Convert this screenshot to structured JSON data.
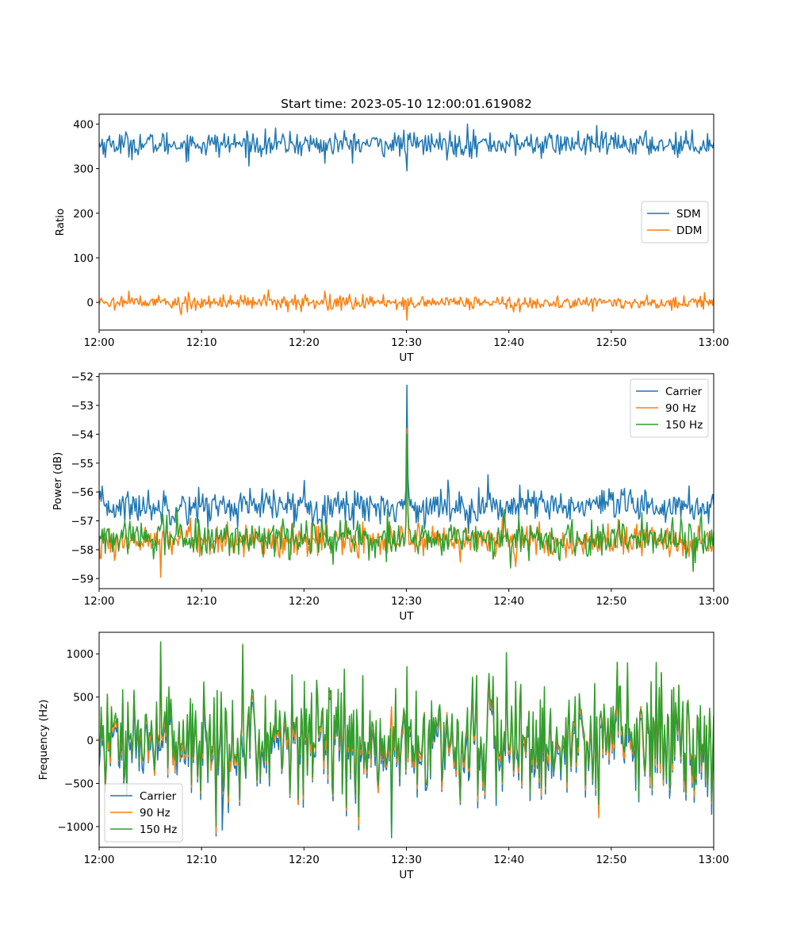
{
  "figure": {
    "title": "Start time: 2023-05-10 12:00:01.619082"
  },
  "chart_data": [
    {
      "type": "line",
      "id": "ratio",
      "ylabel": "Ratio",
      "xlabel": "UT",
      "xlim": [
        "12:00",
        "13:00"
      ],
      "xticks": [
        "12:00",
        "12:10",
        "12:20",
        "12:30",
        "12:40",
        "12:50",
        "13:00"
      ],
      "ylim": [
        -62,
        422
      ],
      "yticks": [
        0,
        100,
        200,
        300,
        400
      ],
      "yticklabels": [
        "0",
        "100",
        "200",
        "300",
        "400"
      ],
      "legend_position": "center-right",
      "samples": 600,
      "series": [
        {
          "name": "SDM",
          "color": "#1f77b4",
          "mean": 355,
          "noise": 14,
          "spikes": [
            {
              "t": "12:30",
              "value": 295
            },
            {
              "t": "12:36",
              "value": 400
            },
            {
              "t": "12:22",
              "value": 312
            }
          ]
        },
        {
          "name": "DDM",
          "color": "#ff7f0e",
          "mean": 0,
          "noise": 8,
          "spikes": [
            {
              "t": "12:30",
              "value": -40
            },
            {
              "t": "12:22",
              "value": 25
            },
            {
              "t": "12:08",
              "value": -28
            }
          ]
        }
      ]
    },
    {
      "type": "line",
      "id": "power",
      "ylabel": "Power (dB)",
      "xlabel": "UT",
      "xlim": [
        "12:00",
        "13:00"
      ],
      "xticks": [
        "12:00",
        "12:10",
        "12:20",
        "12:30",
        "12:40",
        "12:50",
        "13:00"
      ],
      "ylim": [
        -59.35,
        -51.9
      ],
      "yticks": [
        -59,
        -58,
        -57,
        -56,
        -55,
        -54,
        -53,
        -52
      ],
      "yticklabels": [
        "−59",
        "−58",
        "−57",
        "−56",
        "−55",
        "−54",
        "−53",
        "−52"
      ],
      "legend_position": "upper-right",
      "samples": 600,
      "series": [
        {
          "name": "Carrier",
          "color": "#1f77b4",
          "mean": -56.5,
          "noise": 0.3,
          "spikes": [
            {
              "t": "12:30",
              "value": -52.3
            },
            {
              "t": "12:38",
              "value": -55.4
            },
            {
              "t": "12:20",
              "value": -55.6
            }
          ]
        },
        {
          "name": "90 Hz",
          "color": "#ff7f0e",
          "mean": -57.7,
          "noise": 0.3,
          "spikes": [
            {
              "t": "12:30",
              "value": -53.8
            },
            {
              "t": "12:06",
              "value": -58.95
            }
          ]
        },
        {
          "name": "150 Hz",
          "color": "#2ca02c",
          "mean": -57.6,
          "noise": 0.3,
          "spikes": [
            {
              "t": "12:30",
              "value": -54.0
            },
            {
              "t": "12:58",
              "value": -58.75
            }
          ]
        }
      ]
    },
    {
      "type": "line",
      "id": "frequency",
      "ylabel": "Frequency (Hz)",
      "xlabel": "UT",
      "xlim": [
        "12:00",
        "13:00"
      ],
      "xticks": [
        "12:00",
        "12:10",
        "12:20",
        "12:30",
        "12:40",
        "12:50",
        "13:00"
      ],
      "ylim": [
        -1240,
        1250
      ],
      "yticks": [
        -1000,
        -500,
        0,
        500,
        1000
      ],
      "yticklabels": [
        "−1000",
        "−500",
        "0",
        "500",
        "1000"
      ],
      "legend_position": "lower-left",
      "samples": 600,
      "series": [
        {
          "name": "Carrier",
          "color": "#1f77b4",
          "mean": -60,
          "noise": 330,
          "spikes": [
            {
              "t": "12:28.5",
              "value": -1130
            },
            {
              "t": "12:12",
              "value": -1040
            }
          ]
        },
        {
          "name": "90 Hz",
          "color": "#ff7f0e",
          "mean": 0,
          "noise": 330,
          "spikes": [
            {
              "t": "12:06",
              "value": 1130
            },
            {
              "t": "12:14",
              "value": 1100
            }
          ]
        },
        {
          "name": "150 Hz",
          "color": "#2ca02c",
          "mean": 40,
          "noise": 330,
          "spikes": [
            {
              "t": "12:06",
              "value": 1140
            },
            {
              "t": "12:14",
              "value": 1110
            },
            {
              "t": "12:28.5",
              "value": -1100
            }
          ]
        }
      ]
    }
  ]
}
